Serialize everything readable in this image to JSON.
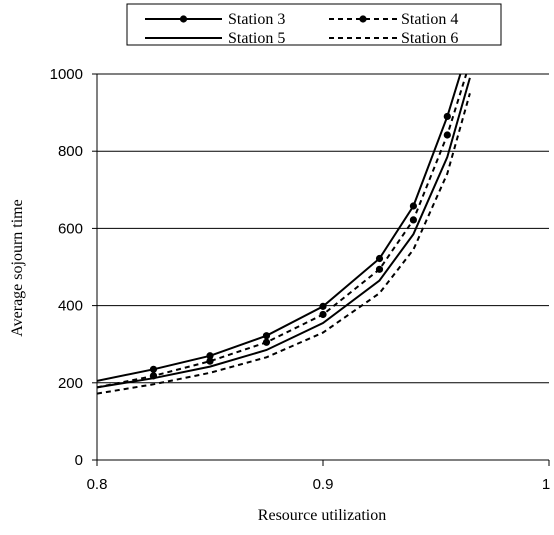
{
  "chart_data": {
    "type": "line",
    "title": "",
    "xlabel": "Resource utilization",
    "ylabel": "Average sojourn time",
    "xlim": [
      0.8,
      1.0
    ],
    "ylim": [
      0,
      1000
    ],
    "x_ticks": [
      0.8,
      0.9,
      1.0
    ],
    "x_tick_labels": [
      "0.8",
      "0.9",
      "1"
    ],
    "y_ticks": [
      0,
      200,
      400,
      600,
      800,
      1000
    ],
    "y_tick_labels": [
      "0",
      "200",
      "400",
      "600",
      "800",
      "1000"
    ],
    "grid": "horizontal",
    "legend": "top",
    "x": [
      0.8,
      0.825,
      0.85,
      0.875,
      0.9,
      0.925,
      0.94,
      0.955,
      0.965
    ],
    "series": [
      {
        "name": "Station 3",
        "style": "solid",
        "markers": true,
        "values": [
          205,
          235,
          270,
          322,
          398,
          522,
          658,
          890,
          1080
        ]
      },
      {
        "name": "Station 4",
        "style": "dashed",
        "markers": true,
        "values": [
          188,
          218,
          256,
          305,
          377,
          494,
          622,
          842,
          1030
        ]
      },
      {
        "name": "Station 5",
        "style": "solid",
        "markers": false,
        "values": [
          188,
          212,
          242,
          285,
          355,
          465,
          585,
          785,
          990
        ]
      },
      {
        "name": "Station 6",
        "style": "dashed",
        "markers": false,
        "values": [
          172,
          196,
          226,
          266,
          330,
          432,
          545,
          742,
          950
        ]
      }
    ],
    "colors": {
      "line": "#000000",
      "grid": "#000000",
      "background": "#ffffff"
    }
  }
}
